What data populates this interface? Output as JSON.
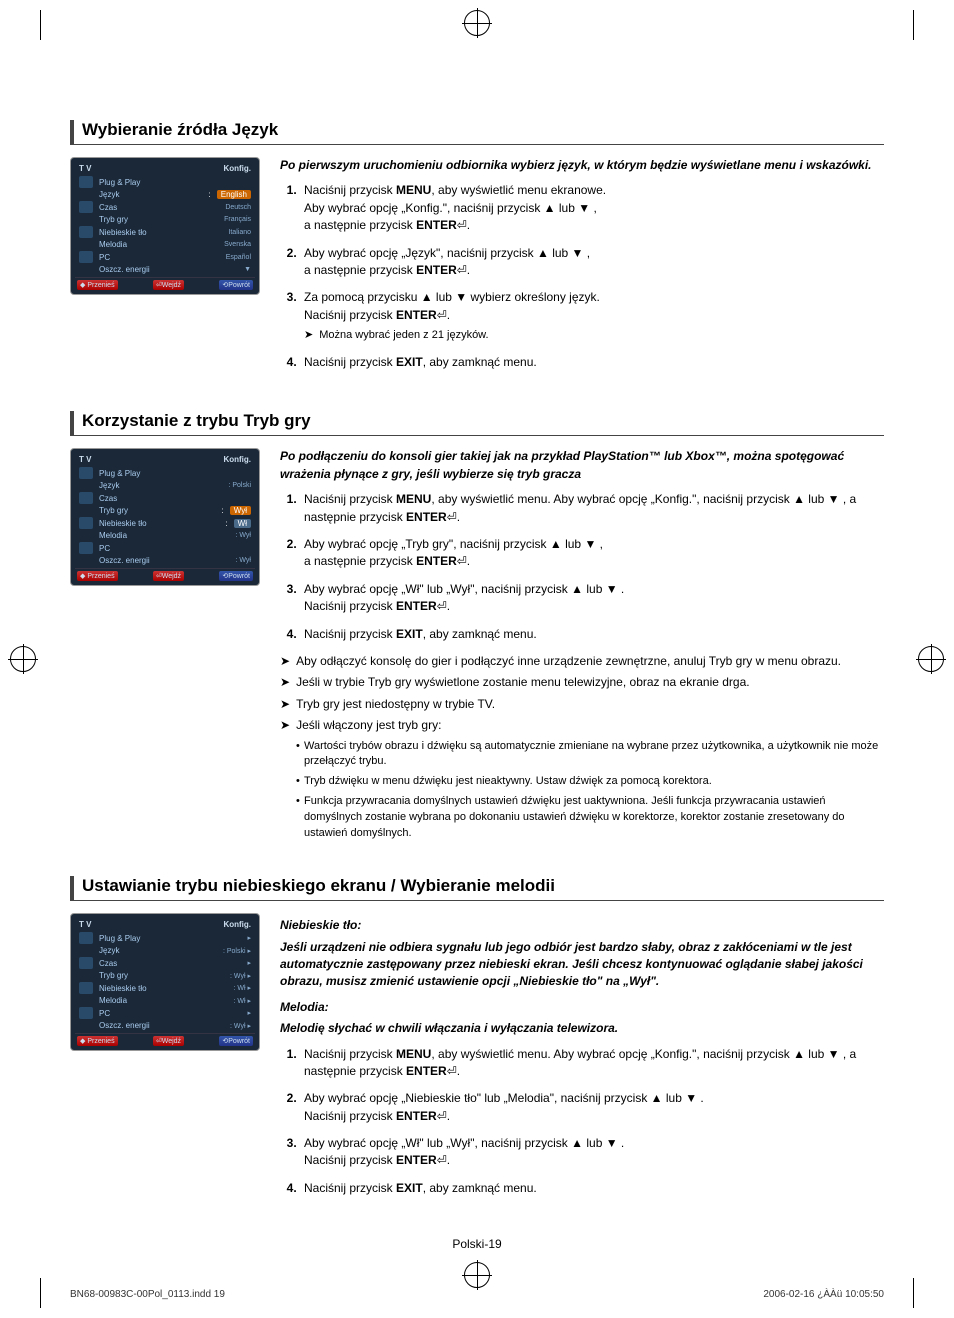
{
  "section1": {
    "title": "Wybieranie źródła Język",
    "intro": "Po pierwszym uruchomieniu odbiornika wybierz język, w którym będzie wyświetlane menu i wskazówki.",
    "tv": {
      "header_left": "T V",
      "header_right": "Konfig.",
      "rows": [
        {
          "label": "Plug & Play",
          "value": ""
        },
        {
          "label": "Język",
          "value": "English",
          "sel": true,
          "orange": true,
          "colon": ":"
        },
        {
          "label": "Czas",
          "value": "Deutsch"
        },
        {
          "label": "Tryb gry",
          "value": "Français"
        },
        {
          "label": "Niebieskie tło",
          "value": "Italiano"
        },
        {
          "label": "Melodia",
          "value": "Svenska"
        },
        {
          "label": "PC",
          "value": "Español"
        },
        {
          "label": "Oszcz. energii",
          "value": "▼"
        }
      ],
      "footer": {
        "move": "Przenieś",
        "enter": "Wejdź",
        "return": "Powrót"
      }
    },
    "steps": [
      {
        "n": "1.",
        "html": "Naciśnij przycisk <b>MENU</b>, aby wyświetlić menu ekranowe.<br>Aby wybrać opcję „Konfig.\", naciśnij przycisk ▲ lub ▼ ,<br>a następnie przycisk <b>ENTER</b>⏎."
      },
      {
        "n": "2.",
        "html": "Aby wybrać opcję „Język\", naciśnij przycisk ▲ lub ▼ ,<br>a następnie przycisk <b>ENTER</b>⏎."
      },
      {
        "n": "3.",
        "html": "Za pomocą przycisku ▲ lub ▼ wybierz określony język.<br>Naciśnij przycisk <b>ENTER</b>⏎.",
        "note": "Można wybrać jeden z 21 języków."
      },
      {
        "n": "4.",
        "html": "Naciśnij przycisk <b>EXIT</b>, aby zamknąć menu."
      }
    ]
  },
  "section2": {
    "title": "Korzystanie z trybu Tryb gry",
    "intro": "Po podłączeniu do konsoli gier takiej jak na przykład PlayStation™ lub Xbox™, można spotęgować wrażenia płynące z gry, jeśli wybierze się tryb gracza",
    "tv": {
      "header_left": "T V",
      "header_right": "Konfig.",
      "rows": [
        {
          "label": "Plug & Play",
          "value": ""
        },
        {
          "label": "Język",
          "value": ": Polski"
        },
        {
          "label": "Czas",
          "value": ""
        },
        {
          "label": "Tryb gry",
          "value": "Wył",
          "sel": true,
          "orange": true,
          "colon": ":"
        },
        {
          "label": "Niebieskie tło",
          "value": "Wł",
          "sel": true,
          "colon": ":"
        },
        {
          "label": "Melodia",
          "value": ": Wył"
        },
        {
          "label": "PC",
          "value": ""
        },
        {
          "label": "Oszcz. energii",
          "value": ": Wył"
        }
      ],
      "footer": {
        "move": "Przenieś",
        "enter": "Wejdź",
        "return": "Powrót"
      }
    },
    "steps": [
      {
        "n": "1.",
        "html": "Naciśnij przycisk <b>MENU</b>, aby wyświetlić menu. Aby wybrać opcję „Konfig.\", naciśnij przycisk ▲ lub ▼ , a następnie przycisk <b>ENTER</b>⏎."
      },
      {
        "n": "2.",
        "html": "Aby wybrać opcję „Tryb gry\", naciśnij przycisk ▲ lub ▼ ,<br>a następnie przycisk <b>ENTER</b>⏎."
      },
      {
        "n": "3.",
        "html": "Aby wybrać opcję „Wł\" lub „Wył\", naciśnij przycisk ▲ lub ▼ .<br>Naciśnij przycisk <b>ENTER</b>⏎."
      },
      {
        "n": "4.",
        "html": "Naciśnij przycisk <b>EXIT</b>, aby zamknąć menu."
      }
    ],
    "notes": [
      "Aby odłączyć konsolę do gier i podłączyć inne urządzenie zewnętrzne, anuluj Tryb gry w menu obrazu.",
      "Jeśli w trybie Tryb gry wyświetlone zostanie menu telewizyjne, obraz na ekranie drga.",
      "Tryb gry jest niedostępny w trybie TV.",
      "Jeśli włączony jest tryb gry:"
    ],
    "subnotes": [
      "Wartości trybów obrazu i dźwięku są automatycznie zmieniane na wybrane przez użytkownika, a użytkownik nie może przełączyć trybu.",
      "Tryb dźwięku w menu dźwięku jest nieaktywny. Ustaw dźwięk za pomocą korektora.",
      "Funkcja przywracania domyślnych ustawień dźwięku jest uaktywniona. Jeśli funkcja przywracania ustawień domyślnych zostanie wybrana po dokonaniu ustawień dźwięku w korektorze, korektor zostanie zresetowany do ustawień domyślnych."
    ]
  },
  "section3": {
    "title": "Ustawianie trybu niebieskiego ekranu / Wybieranie melodii",
    "sub1_title": "Niebieskie tło:",
    "sub1_text": "Jeśli urządzeni nie odbiera sygnału lub jego odbiór jest bardzo słaby, obraz z zakłóceniami w tle jest automatycznie zastępowany przez  niebieski ekran. Jeśli chcesz kontynuować oglądanie słabej jakości obrazu, musisz zmienić ustawienie opcji „Niebieskie tło\" na „Wył\".",
    "sub2_title": "Melodia:",
    "sub2_text": "Melodię słychać w chwili włączania i wyłączania telewizora.",
    "tv": {
      "header_left": "T V",
      "header_right": "Konfig.",
      "rows": [
        {
          "label": "Plug & Play",
          "value": "",
          "arrow": true
        },
        {
          "label": "Język",
          "value": ": Polski",
          "arrow": true
        },
        {
          "label": "Czas",
          "value": "",
          "arrow": true
        },
        {
          "label": "Tryb gry",
          "value": ": Wył",
          "arrow": true
        },
        {
          "label": "Niebieskie tło",
          "value": ": Wł",
          "arrow": true,
          "hl": true
        },
        {
          "label": "Melodia",
          "value": ": Wł",
          "arrow": true,
          "hl": true
        },
        {
          "label": "PC",
          "value": "",
          "arrow": true
        },
        {
          "label": "Oszcz. energii",
          "value": ": Wył",
          "arrow": true
        }
      ],
      "footer": {
        "move": "Przenieś",
        "enter": "Wejdź",
        "return": "Powrót"
      }
    },
    "steps": [
      {
        "n": "1.",
        "html": "Naciśnij przycisk <b>MENU</b>, aby wyświetlić menu. Aby wybrać opcję „Konfig.\", naciśnij przycisk ▲ lub ▼ , a następnie przycisk <b>ENTER</b>⏎."
      },
      {
        "n": "2.",
        "html": "Aby wybrać opcję „Niebieskie tło\" lub „Melodia\", naciśnij przycisk ▲ lub ▼ .<br>Naciśnij przycisk <b>ENTER</b>⏎."
      },
      {
        "n": "3.",
        "html": "Aby wybrać opcję „Wł\" lub „Wył\", naciśnij przycisk ▲ lub ▼ .<br>Naciśnij przycisk <b>ENTER</b>⏎."
      },
      {
        "n": "4.",
        "html": "Naciśnij przycisk <b>EXIT</b>, aby zamknąć menu."
      }
    ]
  },
  "page_number": "Polski-19",
  "footer": {
    "left": "BN68-00983C-00Pol_0113.indd   19",
    "right": "2006-02-16   ¿ÀÀü 10:05:50"
  }
}
